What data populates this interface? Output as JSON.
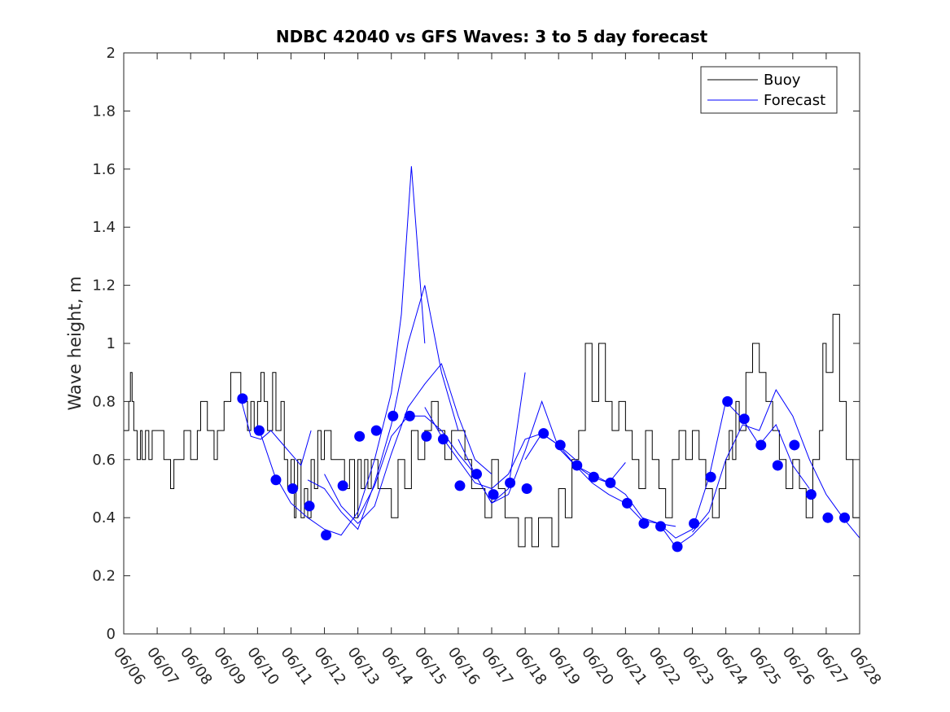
{
  "chart_data": {
    "type": "line",
    "title": "NDBC 42040 vs GFS Waves: 3 to 5 day forecast",
    "xlabel": "",
    "ylabel": "Wave height, m",
    "xlim": [
      0,
      22
    ],
    "ylim": [
      0,
      2
    ],
    "yticks": [
      "0",
      "0.2",
      "0.4",
      "0.6",
      "0.8",
      "1",
      "1.2",
      "1.4",
      "1.6",
      "1.8",
      "2"
    ],
    "xticks": [
      "06/06",
      "06/07",
      "06/08",
      "06/09",
      "06/10",
      "06/11",
      "06/12",
      "06/13",
      "06/14",
      "06/15",
      "06/16",
      "06/17",
      "06/18",
      "06/19",
      "06/20",
      "06/21",
      "06/22",
      "06/23",
      "06/24",
      "06/25",
      "06/26",
      "06/27",
      "06/28"
    ],
    "grid": false,
    "legend": {
      "placement": "top-right",
      "entries": [
        "Buoy",
        "Forecast"
      ]
    },
    "colors": {
      "buoy": "#000000",
      "forecast": "#0000ff",
      "marker": "#0000ff"
    },
    "series": [
      {
        "name": "Buoy",
        "style": "step",
        "x": [
          0,
          0.15,
          0.2,
          0.25,
          0.3,
          0.4,
          0.5,
          0.55,
          0.65,
          0.75,
          0.85,
          1.0,
          1.2,
          1.4,
          1.5,
          1.8,
          2.0,
          2.2,
          2.3,
          2.5,
          2.7,
          2.8,
          3.0,
          3.2,
          3.5,
          3.7,
          3.8,
          3.9,
          4.0,
          4.1,
          4.2,
          4.3,
          4.45,
          4.55,
          4.7,
          4.8,
          4.9,
          5.0,
          5.1,
          5.15,
          5.2,
          5.3,
          5.4,
          5.5,
          5.6,
          5.7,
          5.8,
          5.9,
          6.0,
          6.2,
          6.4,
          6.6,
          6.75,
          6.9,
          7.0,
          7.1,
          7.2,
          7.3,
          7.4,
          7.6,
          7.8,
          8.0,
          8.2,
          8.4,
          8.6,
          8.8,
          9.0,
          9.2,
          9.4,
          9.6,
          9.8,
          10.0,
          10.2,
          10.4,
          10.6,
          10.8,
          11.0,
          11.2,
          11.4,
          11.6,
          11.8,
          12.0,
          12.2,
          12.4,
          12.6,
          12.8,
          13.0,
          13.2,
          13.4,
          13.6,
          13.8,
          14.0,
          14.2,
          14.4,
          14.6,
          14.8,
          15.0,
          15.2,
          15.4,
          15.6,
          15.8,
          16.0,
          16.2,
          16.4,
          16.6,
          16.8,
          17.0,
          17.2,
          17.4,
          17.6,
          17.8,
          18.0,
          18.1,
          18.2,
          18.3,
          18.4,
          18.6,
          18.8,
          19.0,
          19.2,
          19.4,
          19.6,
          19.8,
          20.0,
          20.2,
          20.4,
          20.6,
          20.8,
          20.9,
          21.0,
          21.2,
          21.4,
          21.6,
          21.8,
          22.0
        ],
        "y": [
          0.7,
          0.8,
          0.9,
          0.8,
          0.7,
          0.6,
          0.7,
          0.6,
          0.7,
          0.6,
          0.7,
          0.7,
          0.6,
          0.5,
          0.6,
          0.7,
          0.6,
          0.7,
          0.8,
          0.7,
          0.6,
          0.7,
          0.8,
          0.9,
          0.8,
          0.7,
          0.8,
          0.7,
          0.8,
          0.9,
          0.8,
          0.7,
          0.9,
          0.7,
          0.8,
          0.6,
          0.5,
          0.6,
          0.4,
          0.5,
          0.6,
          0.4,
          0.5,
          0.4,
          0.6,
          0.5,
          0.7,
          0.6,
          0.7,
          0.6,
          0.6,
          0.5,
          0.6,
          0.4,
          0.6,
          0.5,
          0.6,
          0.5,
          0.6,
          0.5,
          0.5,
          0.4,
          0.6,
          0.5,
          0.7,
          0.6,
          0.7,
          0.8,
          0.7,
          0.6,
          0.7,
          0.7,
          0.6,
          0.5,
          0.5,
          0.4,
          0.6,
          0.5,
          0.4,
          0.4,
          0.3,
          0.4,
          0.3,
          0.4,
          0.4,
          0.3,
          0.5,
          0.4,
          0.6,
          0.7,
          1.0,
          0.8,
          1.0,
          0.8,
          0.7,
          0.8,
          0.7,
          0.6,
          0.5,
          0.7,
          0.6,
          0.5,
          0.4,
          0.6,
          0.7,
          0.6,
          0.7,
          0.6,
          0.5,
          0.4,
          0.5,
          0.6,
          0.7,
          0.6,
          0.8,
          0.7,
          0.9,
          1.0,
          0.9,
          0.8,
          0.7,
          0.6,
          0.5,
          0.6,
          0.5,
          0.4,
          0.6,
          0.7,
          1.0,
          0.9,
          1.1,
          0.8,
          0.6,
          0.4,
          0.4
        ]
      },
      {
        "name": "Forecast",
        "style": "lines",
        "runs": [
          {
            "x": [
              3.5,
              3.8,
              4.1,
              4.4,
              4.7,
              5.0,
              5.3,
              5.6
            ],
            "y": [
              0.81,
              0.68,
              0.67,
              0.7,
              0.66,
              0.62,
              0.58,
              0.7
            ]
          },
          {
            "x": [
              4.0,
              4.5,
              5.0,
              5.5,
              6.0,
              6.5,
              7.0,
              7.5,
              8.0,
              8.3,
              8.6,
              9.0
            ],
            "y": [
              0.72,
              0.55,
              0.45,
              0.4,
              0.36,
              0.34,
              0.42,
              0.6,
              0.83,
              1.1,
              1.61,
              1.0
            ]
          },
          {
            "x": [
              5.5,
              6.0,
              6.5,
              7.0,
              7.5,
              8.0,
              8.5,
              9.0,
              9.5,
              10.0
            ],
            "y": [
              0.53,
              0.5,
              0.42,
              0.36,
              0.52,
              0.72,
              1.0,
              1.2,
              0.9,
              0.7
            ]
          },
          {
            "x": [
              6.0,
              6.5,
              7.0,
              7.5,
              8.0,
              8.5,
              9.0,
              9.5,
              10.0,
              10.5,
              11.0
            ],
            "y": [
              0.55,
              0.44,
              0.38,
              0.44,
              0.62,
              0.78,
              0.86,
              0.93,
              0.75,
              0.6,
              0.55
            ]
          },
          {
            "x": [
              7.0,
              7.5,
              8.0,
              8.5,
              9.0,
              9.5,
              10.0,
              10.5,
              11.0,
              11.5,
              12.0
            ],
            "y": [
              0.4,
              0.51,
              0.68,
              0.75,
              0.75,
              0.7,
              0.62,
              0.55,
              0.45,
              0.5,
              0.9
            ]
          },
          {
            "x": [
              9.0,
              9.5,
              10.0,
              10.5,
              11.0,
              11.5,
              12.0,
              12.5,
              13.0,
              13.5
            ],
            "y": [
              0.78,
              0.68,
              0.6,
              0.52,
              0.5,
              0.55,
              0.67,
              0.69,
              0.65,
              0.6
            ]
          },
          {
            "x": [
              10.0,
              10.5,
              11.0,
              11.5,
              12.0,
              12.5,
              13.0,
              13.5,
              14.0,
              14.5,
              15.0
            ],
            "y": [
              0.67,
              0.55,
              0.45,
              0.48,
              0.63,
              0.8,
              0.64,
              0.58,
              0.55,
              0.52,
              0.59
            ]
          },
          {
            "x": [
              12.0,
              12.5,
              13.0,
              13.5,
              14.0,
              14.5,
              15.0,
              15.5,
              16.0,
              16.5
            ],
            "y": [
              0.6,
              0.69,
              0.65,
              0.58,
              0.54,
              0.52,
              0.48,
              0.4,
              0.38,
              0.37
            ]
          },
          {
            "x": [
              13.0,
              13.5,
              14.0,
              14.5,
              15.0,
              15.5,
              16.0,
              16.5,
              17.0,
              17.5
            ],
            "y": [
              0.64,
              0.58,
              0.52,
              0.48,
              0.45,
              0.39,
              0.38,
              0.3,
              0.34,
              0.4
            ]
          },
          {
            "x": [
              16.0,
              16.5,
              17.0,
              17.5,
              18.0,
              18.5,
              19.0,
              19.5,
              20.0,
              20.5
            ],
            "y": [
              0.38,
              0.33,
              0.36,
              0.54,
              0.8,
              0.74,
              0.65,
              0.72,
              0.58,
              0.5
            ]
          },
          {
            "x": [
              17.0,
              17.5,
              18.0,
              18.5,
              19.0,
              19.5,
              20.0,
              20.5,
              21.0,
              21.5,
              22.0
            ],
            "y": [
              0.35,
              0.42,
              0.6,
              0.72,
              0.7,
              0.84,
              0.75,
              0.6,
              0.48,
              0.4,
              0.33
            ]
          }
        ],
        "markers": {
          "x": [
            3.55,
            4.05,
            4.55,
            5.05,
            5.55,
            6.05,
            6.55,
            7.05,
            7.55,
            8.05,
            8.55,
            9.05,
            9.55,
            10.05,
            10.55,
            11.05,
            11.55,
            12.05,
            12.55,
            13.05,
            13.55,
            14.05,
            14.55,
            15.05,
            15.55,
            16.05,
            16.55,
            17.05,
            17.55,
            18.05,
            18.55,
            19.05,
            19.55,
            20.05,
            20.55,
            21.05,
            21.55
          ],
          "y": [
            0.81,
            0.7,
            0.53,
            0.5,
            0.44,
            0.34,
            0.51,
            0.68,
            0.7,
            0.75,
            0.75,
            0.68,
            0.67,
            0.51,
            0.55,
            0.48,
            0.52,
            0.5,
            0.69,
            0.65,
            0.58,
            0.54,
            0.52,
            0.45,
            0.38,
            0.37,
            0.3,
            0.38,
            0.54,
            0.8,
            0.74,
            0.65,
            0.58,
            0.65,
            0.48,
            0.4,
            0.4
          ]
        }
      }
    ]
  }
}
